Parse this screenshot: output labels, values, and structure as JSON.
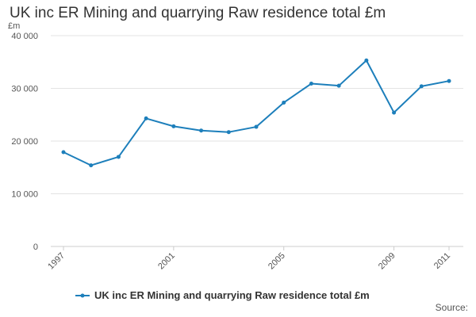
{
  "colors": {
    "series": "#1d7fbb",
    "grid": "#e3e3e3",
    "axis": "#cccccc"
  },
  "chart_data": {
    "type": "line",
    "title": "UK inc ER Mining and quarrying Raw residence total £m",
    "ylabel": "£m",
    "xlabel": "",
    "ylim": [
      0,
      40000
    ],
    "yticks": [
      0,
      10000,
      20000,
      30000,
      40000
    ],
    "ytick_labels": [
      "0",
      "10 000",
      "20 000",
      "30 000",
      "40 000"
    ],
    "xtick_labels": [
      "1997",
      "2001",
      "2005",
      "2009",
      "2011"
    ],
    "x": [
      "1997",
      "1998",
      "1999",
      "2000",
      "2001",
      "2002",
      "2003",
      "2004",
      "2005",
      "2006",
      "2007",
      "2008",
      "2009",
      "2010",
      "2011"
    ],
    "series": [
      {
        "name": "UK inc ER Mining and quarrying Raw residence total £m",
        "values": [
          17900,
          15400,
          17000,
          24300,
          22800,
          22000,
          21700,
          22700,
          27300,
          30900,
          30500,
          35300,
          25400,
          30400,
          31400
        ]
      }
    ],
    "legend": "bottom",
    "source": "Source:"
  }
}
